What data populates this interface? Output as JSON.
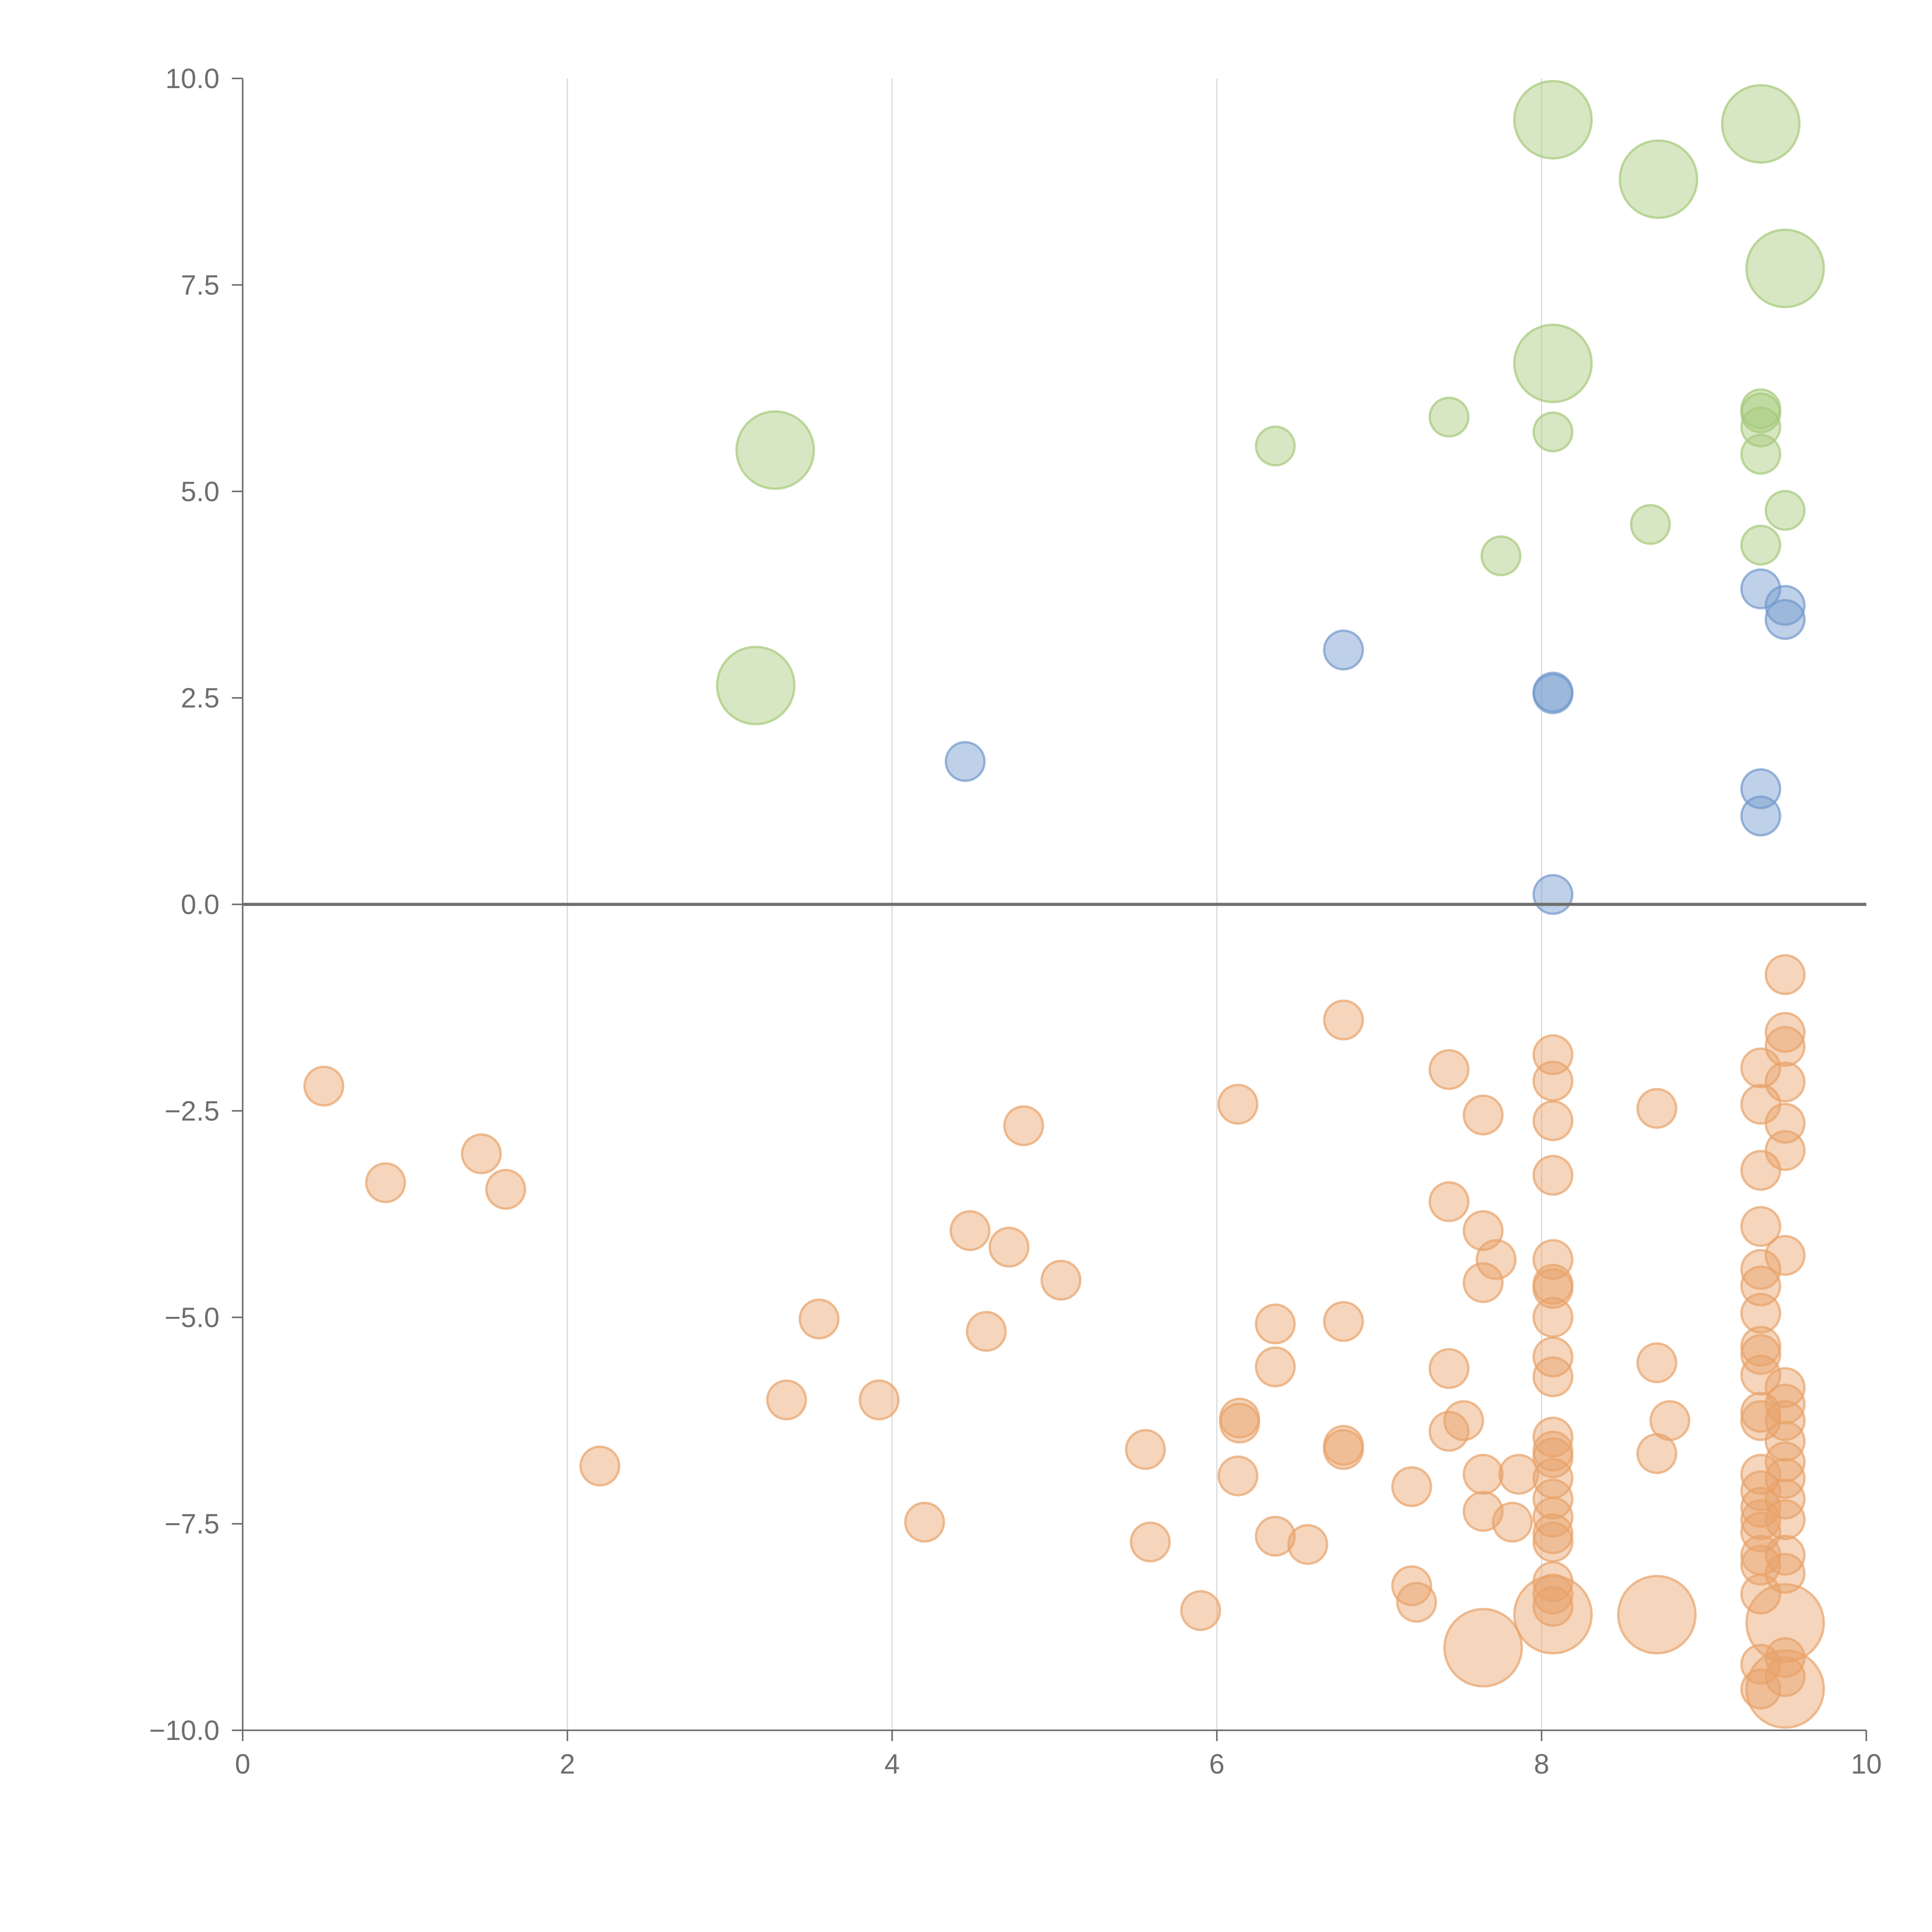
{
  "chart_data": {
    "type": "scatter",
    "title": "",
    "xlabel": "",
    "ylabel": "",
    "xlim": [
      0,
      10
    ],
    "ylim": [
      -10,
      10
    ],
    "grid": "vertical",
    "x_ticks": [
      "0",
      "2",
      "4",
      "6",
      "8",
      "10"
    ],
    "x_tick_values": [
      0,
      2,
      4,
      6,
      8,
      10
    ],
    "y_ticks": [
      "10.0",
      "7.5",
      "5.0",
      "2.5",
      "0.0",
      "−2.5",
      "−5.0",
      "−7.5",
      "−10.0"
    ],
    "y_tick_values": [
      10,
      7.5,
      5,
      2.5,
      0,
      -2.5,
      -5,
      -7.5,
      -10
    ],
    "colors": {
      "green": "#a6c97a",
      "blue": "#7299cc",
      "orange": "#e8a26a"
    },
    "series": [
      {
        "color": "#a6c97a",
        "points": [
          {
            "x": 8.07,
            "y": 9.5,
            "s": 3
          },
          {
            "x": 9.35,
            "y": 9.45,
            "s": 3
          },
          {
            "x": 8.72,
            "y": 8.78,
            "s": 3
          },
          {
            "x": 9.5,
            "y": 7.7,
            "s": 3
          },
          {
            "x": 8.07,
            "y": 6.55,
            "s": 3
          },
          {
            "x": 3.28,
            "y": 5.5,
            "s": 3
          },
          {
            "x": 3.16,
            "y": 2.65,
            "s": 3
          },
          {
            "x": 6.36,
            "y": 5.55,
            "s": 1
          },
          {
            "x": 7.43,
            "y": 5.9,
            "s": 1
          },
          {
            "x": 8.07,
            "y": 5.72,
            "s": 1
          },
          {
            "x": 9.35,
            "y": 6.0,
            "s": 1
          },
          {
            "x": 9.35,
            "y": 5.95,
            "s": 1
          },
          {
            "x": 9.35,
            "y": 5.78,
            "s": 1
          },
          {
            "x": 9.35,
            "y": 5.45,
            "s": 1
          },
          {
            "x": 9.5,
            "y": 4.77,
            "s": 1
          },
          {
            "x": 8.67,
            "y": 4.6,
            "s": 1
          },
          {
            "x": 9.35,
            "y": 4.35,
            "s": 1
          },
          {
            "x": 7.75,
            "y": 4.22,
            "s": 1
          }
        ]
      },
      {
        "color": "#7299cc",
        "points": [
          {
            "x": 9.35,
            "y": 3.82,
            "s": 1
          },
          {
            "x": 9.5,
            "y": 3.62,
            "s": 1
          },
          {
            "x": 9.5,
            "y": 3.45,
            "s": 1
          },
          {
            "x": 6.78,
            "y": 3.08,
            "s": 1
          },
          {
            "x": 8.07,
            "y": 2.57,
            "s": 1
          },
          {
            "x": 8.07,
            "y": 2.55,
            "s": 1
          },
          {
            "x": 4.45,
            "y": 1.73,
            "s": 1
          },
          {
            "x": 9.35,
            "y": 1.4,
            "s": 1
          },
          {
            "x": 9.35,
            "y": 1.07,
            "s": 1
          },
          {
            "x": 8.07,
            "y": 0.12,
            "s": 1
          }
        ]
      },
      {
        "color": "#e8a26a",
        "points": [
          {
            "x": 0.5,
            "y": -2.2,
            "s": 1
          },
          {
            "x": 0.88,
            "y": -3.37,
            "s": 1
          },
          {
            "x": 1.47,
            "y": -3.02,
            "s": 1
          },
          {
            "x": 1.62,
            "y": -3.45,
            "s": 1
          },
          {
            "x": 2.2,
            "y": -6.8,
            "s": 1
          },
          {
            "x": 3.35,
            "y": -6.0,
            "s": 1
          },
          {
            "x": 3.55,
            "y": -5.02,
            "s": 1
          },
          {
            "x": 3.92,
            "y": -6.0,
            "s": 1
          },
          {
            "x": 4.2,
            "y": -7.48,
            "s": 1
          },
          {
            "x": 4.48,
            "y": -3.95,
            "s": 1
          },
          {
            "x": 4.58,
            "y": -5.17,
            "s": 1
          },
          {
            "x": 4.72,
            "y": -4.15,
            "s": 1
          },
          {
            "x": 4.81,
            "y": -2.68,
            "s": 1
          },
          {
            "x": 5.04,
            "y": -4.55,
            "s": 1
          },
          {
            "x": 5.56,
            "y": -6.6,
            "s": 1
          },
          {
            "x": 5.59,
            "y": -7.72,
            "s": 1
          },
          {
            "x": 5.9,
            "y": -8.55,
            "s": 1
          },
          {
            "x": 6.13,
            "y": -2.42,
            "s": 1
          },
          {
            "x": 6.13,
            "y": -6.92,
            "s": 1
          },
          {
            "x": 6.14,
            "y": -6.22,
            "s": 1
          },
          {
            "x": 6.14,
            "y": -6.28,
            "s": 1
          },
          {
            "x": 6.36,
            "y": -5.08,
            "s": 1
          },
          {
            "x": 6.36,
            "y": -5.6,
            "s": 1
          },
          {
            "x": 6.36,
            "y": -7.65,
            "s": 1
          },
          {
            "x": 6.56,
            "y": -7.75,
            "s": 1
          },
          {
            "x": 6.78,
            "y": -1.4,
            "s": 1
          },
          {
            "x": 6.78,
            "y": -5.05,
            "s": 1
          },
          {
            "x": 6.78,
            "y": -6.55,
            "s": 1
          },
          {
            "x": 6.78,
            "y": -6.6,
            "s": 1
          },
          {
            "x": 7.2,
            "y": -8.25,
            "s": 1
          },
          {
            "x": 7.23,
            "y": -8.45,
            "s": 1
          },
          {
            "x": 7.2,
            "y": -7.05,
            "s": 1
          },
          {
            "x": 7.43,
            "y": -2.0,
            "s": 1
          },
          {
            "x": 7.43,
            "y": -3.6,
            "s": 1
          },
          {
            "x": 7.43,
            "y": -5.62,
            "s": 1
          },
          {
            "x": 7.43,
            "y": -6.38,
            "s": 1
          },
          {
            "x": 7.52,
            "y": -6.25,
            "s": 1
          },
          {
            "x": 7.64,
            "y": -2.55,
            "s": 1
          },
          {
            "x": 7.64,
            "y": -3.95,
            "s": 1
          },
          {
            "x": 7.64,
            "y": -4.58,
            "s": 1
          },
          {
            "x": 7.64,
            "y": -6.9,
            "s": 1
          },
          {
            "x": 7.64,
            "y": -7.35,
            "s": 1
          },
          {
            "x": 7.72,
            "y": -4.3,
            "s": 1
          },
          {
            "x": 7.82,
            "y": -7.48,
            "s": 1
          },
          {
            "x": 7.86,
            "y": -6.9,
            "s": 1
          },
          {
            "x": 7.64,
            "y": -9.0,
            "s": 3
          },
          {
            "x": 8.07,
            "y": -1.82,
            "s": 1
          },
          {
            "x": 8.07,
            "y": -2.14,
            "s": 1
          },
          {
            "x": 8.07,
            "y": -2.62,
            "s": 1
          },
          {
            "x": 8.07,
            "y": -3.28,
            "s": 1
          },
          {
            "x": 8.07,
            "y": -4.3,
            "s": 1
          },
          {
            "x": 8.07,
            "y": -4.6,
            "s": 1
          },
          {
            "x": 8.07,
            "y": -4.65,
            "s": 1
          },
          {
            "x": 8.07,
            "y": -5.0,
            "s": 1
          },
          {
            "x": 8.07,
            "y": -5.48,
            "s": 1
          },
          {
            "x": 8.07,
            "y": -5.72,
            "s": 1
          },
          {
            "x": 8.07,
            "y": -6.45,
            "s": 1
          },
          {
            "x": 8.07,
            "y": -6.62,
            "s": 1
          },
          {
            "x": 8.07,
            "y": -6.7,
            "s": 1
          },
          {
            "x": 8.07,
            "y": -6.95,
            "s": 1
          },
          {
            "x": 8.07,
            "y": -7.2,
            "s": 1
          },
          {
            "x": 8.07,
            "y": -7.42,
            "s": 1
          },
          {
            "x": 8.07,
            "y": -7.62,
            "s": 1
          },
          {
            "x": 8.07,
            "y": -7.72,
            "s": 1
          },
          {
            "x": 8.07,
            "y": -8.2,
            "s": 1
          },
          {
            "x": 8.07,
            "y": -8.35,
            "s": 1
          },
          {
            "x": 8.07,
            "y": -8.5,
            "s": 1
          },
          {
            "x": 8.07,
            "y": -8.6,
            "s": 3
          },
          {
            "x": 8.71,
            "y": -2.47,
            "s": 1
          },
          {
            "x": 8.71,
            "y": -5.55,
            "s": 1
          },
          {
            "x": 8.71,
            "y": -6.65,
            "s": 1
          },
          {
            "x": 8.79,
            "y": -6.25,
            "s": 1
          },
          {
            "x": 8.71,
            "y": -8.6,
            "s": 3
          },
          {
            "x": 9.35,
            "y": -1.98,
            "s": 1
          },
          {
            "x": 9.35,
            "y": -2.42,
            "s": 1
          },
          {
            "x": 9.35,
            "y": -3.22,
            "s": 1
          },
          {
            "x": 9.35,
            "y": -3.9,
            "s": 1
          },
          {
            "x": 9.35,
            "y": -4.42,
            "s": 1
          },
          {
            "x": 9.35,
            "y": -4.62,
            "s": 1
          },
          {
            "x": 9.35,
            "y": -4.95,
            "s": 1
          },
          {
            "x": 9.35,
            "y": -5.35,
            "s": 1
          },
          {
            "x": 9.35,
            "y": -5.45,
            "s": 1
          },
          {
            "x": 9.35,
            "y": -5.7,
            "s": 1
          },
          {
            "x": 9.35,
            "y": -6.15,
            "s": 1
          },
          {
            "x": 9.35,
            "y": -6.25,
            "s": 1
          },
          {
            "x": 9.35,
            "y": -6.9,
            "s": 1
          },
          {
            "x": 9.35,
            "y": -7.1,
            "s": 1
          },
          {
            "x": 9.35,
            "y": -7.3,
            "s": 1
          },
          {
            "x": 9.35,
            "y": -7.45,
            "s": 1
          },
          {
            "x": 9.35,
            "y": -7.6,
            "s": 1
          },
          {
            "x": 9.35,
            "y": -7.88,
            "s": 1
          },
          {
            "x": 9.35,
            "y": -8.0,
            "s": 1
          },
          {
            "x": 9.35,
            "y": -8.35,
            "s": 1
          },
          {
            "x": 9.35,
            "y": -9.2,
            "s": 1
          },
          {
            "x": 9.35,
            "y": -9.5,
            "s": 1
          },
          {
            "x": 9.5,
            "y": -0.85,
            "s": 1
          },
          {
            "x": 9.5,
            "y": -1.55,
            "s": 1
          },
          {
            "x": 9.5,
            "y": -1.72,
            "s": 1
          },
          {
            "x": 9.5,
            "y": -2.15,
            "s": 1
          },
          {
            "x": 9.5,
            "y": -2.65,
            "s": 1
          },
          {
            "x": 9.5,
            "y": -2.98,
            "s": 1
          },
          {
            "x": 9.5,
            "y": -4.25,
            "s": 1
          },
          {
            "x": 9.5,
            "y": -5.85,
            "s": 1
          },
          {
            "x": 9.5,
            "y": -6.05,
            "s": 1
          },
          {
            "x": 9.5,
            "y": -6.25,
            "s": 1
          },
          {
            "x": 9.5,
            "y": -6.5,
            "s": 1
          },
          {
            "x": 9.5,
            "y": -6.75,
            "s": 1
          },
          {
            "x": 9.5,
            "y": -6.95,
            "s": 1
          },
          {
            "x": 9.5,
            "y": -7.2,
            "s": 1
          },
          {
            "x": 9.5,
            "y": -7.45,
            "s": 1
          },
          {
            "x": 9.5,
            "y": -7.88,
            "s": 1
          },
          {
            "x": 9.5,
            "y": -8.1,
            "s": 1
          },
          {
            "x": 9.5,
            "y": -9.12,
            "s": 1
          },
          {
            "x": 9.5,
            "y": -9.35,
            "s": 1
          },
          {
            "x": 9.5,
            "y": -8.7,
            "s": 3
          },
          {
            "x": 9.5,
            "y": -9.5,
            "s": 3
          }
        ]
      }
    ]
  }
}
